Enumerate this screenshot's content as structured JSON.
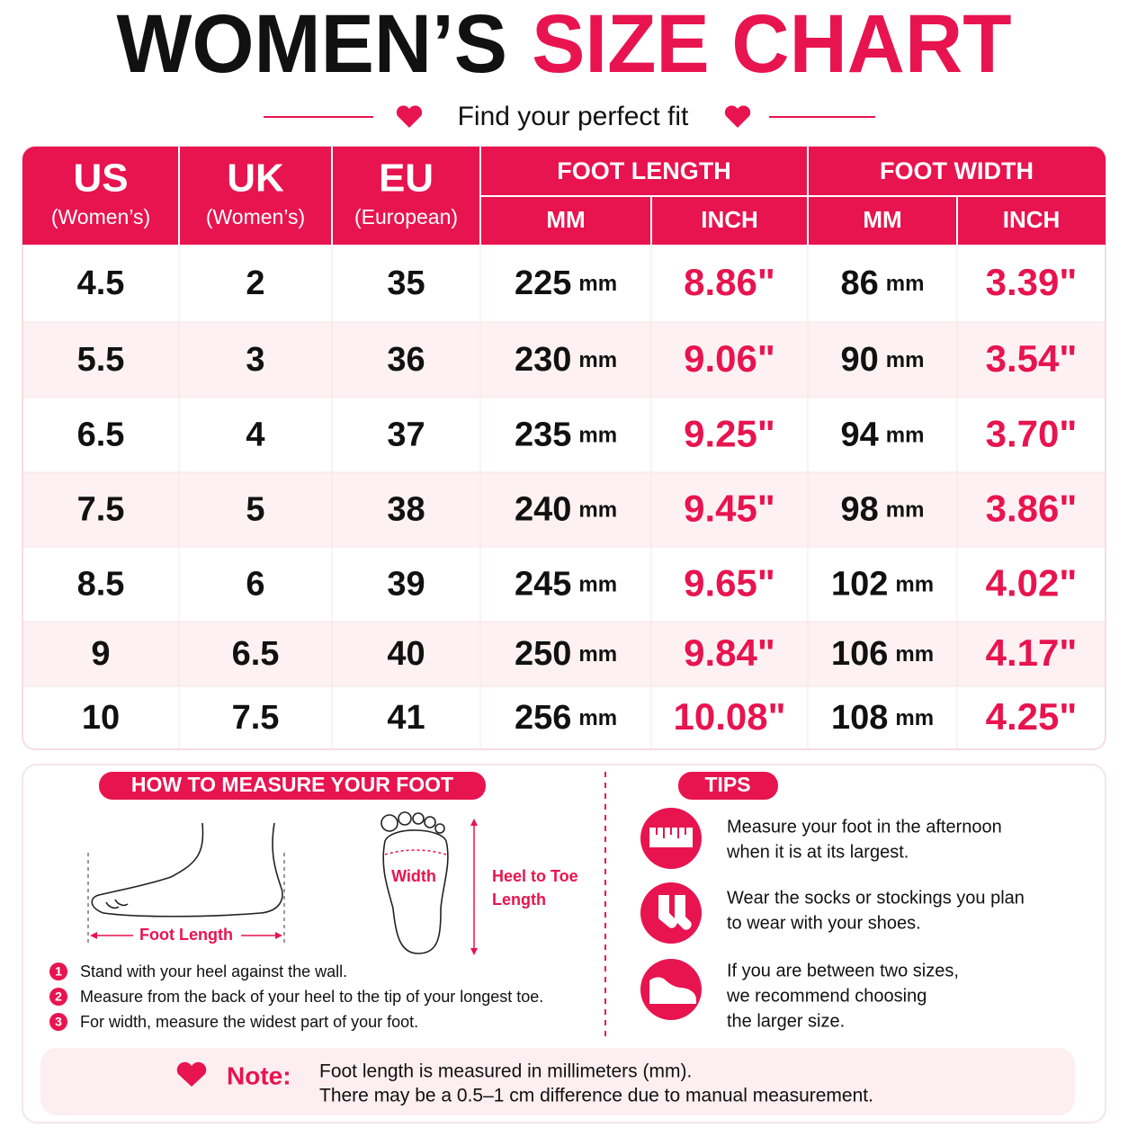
{
  "title": {
    "black": "WOMEN’S",
    "pink": "SIZE CHART"
  },
  "subtitle": "Find your perfect fit",
  "table": {
    "columns": [
      {
        "label": "US",
        "sub": "(Women’s)"
      },
      {
        "label": "UK",
        "sub": "(Women’s)"
      },
      {
        "label": "EU",
        "sub": "(European)"
      }
    ],
    "groups": [
      {
        "label": "FOOT LENGTH",
        "sub": [
          "MM",
          "INCH"
        ]
      },
      {
        "label": "FOOT WIDTH",
        "sub": [
          "MM",
          "INCH"
        ]
      }
    ],
    "rows": [
      [
        "4.5",
        "2",
        "35",
        {
          "value": "225",
          "unit": "mm"
        },
        "8.86\"",
        {
          "value": "86",
          "unit": "mm"
        },
        "3.39\""
      ],
      [
        "5.5",
        "3",
        "36",
        {
          "value": "230",
          "unit": "mm"
        },
        "9.06\"",
        {
          "value": "90",
          "unit": "mm"
        },
        "3.54\""
      ],
      [
        "6.5",
        "4",
        "37",
        {
          "value": "235",
          "unit": "mm"
        },
        "9.25\"",
        {
          "value": "94",
          "unit": "mm"
        },
        "3.70\""
      ],
      [
        "7.5",
        "5",
        "38",
        {
          "value": "240",
          "unit": "mm"
        },
        "9.45\"",
        {
          "value": "98",
          "unit": "mm"
        },
        "3.86\""
      ],
      [
        "8.5",
        "6",
        "39",
        {
          "value": "245",
          "unit": "mm"
        },
        "9.65\"",
        {
          "value": "102",
          "unit": "mm"
        },
        "4.02\""
      ],
      [
        "9",
        "6.5",
        "40",
        {
          "value": "250",
          "unit": "mm"
        },
        "9.84\"",
        {
          "value": "106",
          "unit": "mm"
        },
        "4.17\""
      ],
      [
        "10",
        "7.5",
        "41",
        {
          "value": "256",
          "unit": "mm"
        },
        "10.08\"",
        {
          "value": "108",
          "unit": "mm"
        },
        "4.25\""
      ]
    ]
  },
  "measure": {
    "heading": "HOW TO MEASURE YOUR FOOT",
    "labels": {
      "foot_length": "Foot Length",
      "width": "Width",
      "heel_to_toe": [
        "Heel to Toe",
        "Length"
      ]
    },
    "steps": [
      {
        "number": "1",
        "text": "Stand with your heel against the wall."
      },
      {
        "number": "2",
        "text": "Measure from the back of your heel to the tip of your longest toe."
      },
      {
        "number": "3",
        "text": "For width, measure the widest part of your foot."
      }
    ]
  },
  "tips": {
    "heading": "TIPS",
    "items": [
      [
        "Measure your foot in the afternoon",
        "when it is at its largest."
      ],
      [
        "Wear the socks or stockings you plan",
        "to wear with your shoes."
      ],
      [
        "If you are between two sizes,",
        "we recommend choosing",
        "the larger size."
      ]
    ]
  },
  "note": {
    "label": "Note:",
    "lines": [
      "Foot length is measured in millimeters (mm).",
      "There may be a 0.5–1 cm difference due to manual measurement."
    ]
  }
}
